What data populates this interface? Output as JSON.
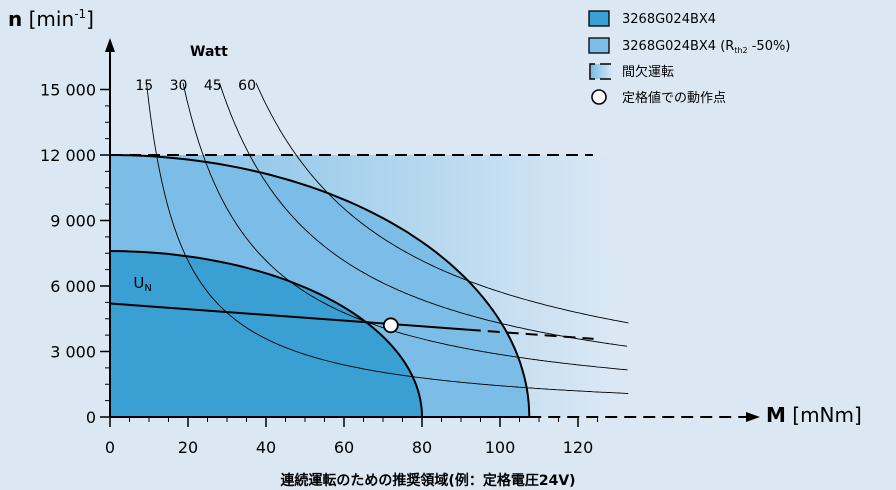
{
  "chart_data": {
    "type": "line",
    "title": "",
    "caption": "連続運転のための推奨領域(例：定格電圧24V)",
    "xlabel": {
      "bold": "M",
      "unit": " [mNm]"
    },
    "ylabel": {
      "bold": "n",
      "unit_pre": " [min",
      "unit_sup": "-1",
      "unit_post": "]"
    },
    "xlim": [
      0,
      130
    ],
    "ylim": [
      0,
      16500
    ],
    "x_ticks": [
      0,
      20,
      40,
      60,
      80,
      100,
      120
    ],
    "x_tick_labels": [
      "0",
      "20",
      "40",
      "60",
      "80",
      "100",
      "120"
    ],
    "y_ticks": [
      0,
      3000,
      6000,
      9000,
      12000,
      15000
    ],
    "y_tick_labels": [
      "0",
      "3 000",
      "6 000",
      "9 000",
      "12 000",
      "15 000"
    ],
    "watt_title": "Watt",
    "power_curves": [
      {
        "watts": 15,
        "label": "15"
      },
      {
        "watts": 30,
        "label": "30"
      },
      {
        "watts": 45,
        "label": "45"
      },
      {
        "watts": 60,
        "label": "60"
      }
    ],
    "regions": {
      "continuous": {
        "max_speed": 7600,
        "max_torque": 80,
        "color": "#3a9fd3"
      },
      "continuous_rth2": {
        "max_speed": 12000,
        "max_torque": 107.5,
        "color": "#7bbde6"
      },
      "intermittent": {
        "max_speed": 12000,
        "max_torque": 130,
        "color": "#7bbde6"
      }
    },
    "speed_limit": 12000,
    "un_line": {
      "label": "U",
      "label_sub": "N",
      "points": [
        [
          0,
          5200
        ],
        [
          130,
          3500
        ]
      ]
    },
    "operating_point": {
      "x": 72,
      "y": 4200
    },
    "legend": [
      {
        "type": "box",
        "color": "#3a9fd3",
        "text": "3268G024BX4"
      },
      {
        "type": "box",
        "color": "#7bbde6",
        "text": "3268G024BX4 (R",
        "sub": "th2",
        "text_after": " -50%)"
      },
      {
        "type": "gradient",
        "text": "間欠運転"
      },
      {
        "type": "circle",
        "text": "定格値での動作点"
      }
    ]
  }
}
